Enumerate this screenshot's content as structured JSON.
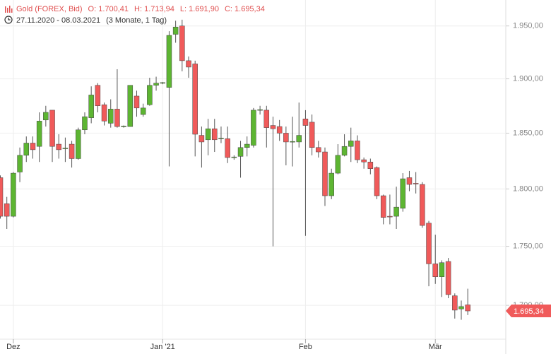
{
  "chart_data": {
    "type": "candlestick",
    "title": "Gold (FOREX, Bid)",
    "ohlc_labels": [
      "O: 1.700,41",
      "H: 1.713,94",
      "L: 1.691,90",
      "C: 1.695,34"
    ],
    "date_range": "27.11.2020 - 08.03.2021",
    "period": "(3 Monate, 1 Tag)",
    "log_scale": true,
    "grid": true,
    "up_color": "#5db532",
    "down_color": "#f05a5a",
    "ylim": [
      1672,
      1975
    ],
    "yticks": [
      {
        "value": 1700,
        "label": "1.700,00"
      },
      {
        "value": 1750,
        "label": "1.750,00"
      },
      {
        "value": 1800,
        "label": "1.800,00"
      },
      {
        "value": 1850,
        "label": "1.850,00"
      },
      {
        "value": 1900,
        "label": "1.900,00"
      },
      {
        "value": 1950,
        "label": "1.950,00"
      }
    ],
    "last_value": {
      "value": 1695.34,
      "label": "1.695,34"
    },
    "categories": [
      null,
      null,
      "Dez",
      null,
      null,
      null,
      null,
      null,
      null,
      null,
      null,
      null,
      null,
      null,
      null,
      null,
      null,
      null,
      null,
      null,
      null,
      null,
      null,
      null,
      null,
      "Jan '21",
      null,
      null,
      null,
      null,
      null,
      null,
      null,
      null,
      null,
      null,
      null,
      null,
      null,
      null,
      null,
      null,
      null,
      null,
      null,
      null,
      null,
      "Feb",
      null,
      null,
      null,
      null,
      null,
      null,
      null,
      null,
      null,
      null,
      null,
      null,
      null,
      null,
      null,
      null,
      null,
      null,
      null,
      "Mär",
      null,
      null,
      null,
      null,
      null
    ],
    "open": [
      1810,
      1787,
      1776,
      1815,
      1830,
      1841,
      1838,
      1862,
      1871,
      1840,
      1836,
      1840,
      1827,
      1853,
      1864,
      1894,
      1876,
      1859,
      1872,
      1856,
      1856,
      1884,
      1867,
      1876,
      1894,
      1896,
      1892,
      1942,
      1950,
      1917,
      1914,
      1848,
      1844,
      1854,
      1845,
      1845,
      1828,
      1829,
      1837,
      1839,
      1871,
      1871,
      1857,
      1856,
      1850,
      1842,
      1842,
      1863,
      1860,
      1837,
      1833,
      1794,
      1814,
      1830,
      1838,
      1843,
      1826,
      1824,
      1819,
      1794,
      1776,
      1776,
      1783,
      1810,
      1805,
      1804,
      1770,
      1735,
      1724,
      1737,
      1708,
      1697,
      1700.41
    ],
    "high": [
      1812,
      1793,
      1815,
      1837,
      1847,
      1847,
      1869,
      1875,
      1871,
      1849,
      1846,
      1843,
      1855,
      1869,
      1893,
      1896,
      1878,
      1881,
      1909,
      1857,
      1894,
      1889,
      1877,
      1901,
      1902,
      1897,
      1945,
      1955,
      1956,
      1921,
      1917,
      1856,
      1863,
      1863,
      1856,
      1856,
      1830,
      1843,
      1847,
      1873,
      1875,
      1875,
      1865,
      1862,
      1856,
      1865,
      1878,
      1871,
      1867,
      1843,
      1837,
      1818,
      1840,
      1849,
      1855,
      1848,
      1828,
      1827,
      1820,
      1795,
      1795,
      1802,
      1814,
      1816,
      1815,
      1806,
      1772,
      1760,
      1738,
      1740,
      1710,
      1704,
      1713.94
    ],
    "low": [
      1774,
      1765,
      1775,
      1806,
      1824,
      1827,
      1824,
      1856,
      1824,
      1827,
      1824,
      1819,
      1826,
      1849,
      1859,
      1869,
      1857,
      1855,
      1855,
      1855,
      1856,
      1865,
      1865,
      1875,
      1889,
      1895,
      1820,
      1934,
      1907,
      1901,
      1829,
      1819,
      1830,
      1833,
      1841,
      1823,
      1826,
      1810,
      1829,
      1837,
      1867,
      1837,
      1750,
      1843,
      1821,
      1820,
      1837,
      1759,
      1830,
      1828,
      1785,
      1791,
      1813,
      1829,
      1824,
      1823,
      1818,
      1813,
      1791,
      1769,
      1769,
      1765,
      1780,
      1798,
      1796,
      1766,
      1716,
      1718,
      1707,
      1706,
      1689,
      1688,
      1691.9
    ],
    "close": [
      1776,
      1776,
      1814,
      1830,
      1841,
      1835,
      1861,
      1869,
      1838,
      1835,
      1836.5,
      1827,
      1853,
      1865,
      1885,
      1875,
      1861,
      1872,
      1856,
      1856.5,
      1894,
      1873,
      1873,
      1894,
      1896,
      1896.5,
      1941,
      1949,
      1917,
      1911,
      1849,
      1842,
      1854,
      1844,
      1845.5,
      1828,
      1828.5,
      1837,
      1840,
      1871,
      1871.5,
      1855,
      1854,
      1850,
      1842,
      1842.5,
      1848,
      1857,
      1837,
      1833,
      1794,
      1814,
      1830,
      1838,
      1843,
      1826,
      1824,
      1818,
      1794,
      1775,
      1775.5,
      1784,
      1809,
      1804,
      1804.5,
      1768,
      1735,
      1724,
      1736,
      1709,
      1696,
      1699,
      1695.34
    ]
  }
}
